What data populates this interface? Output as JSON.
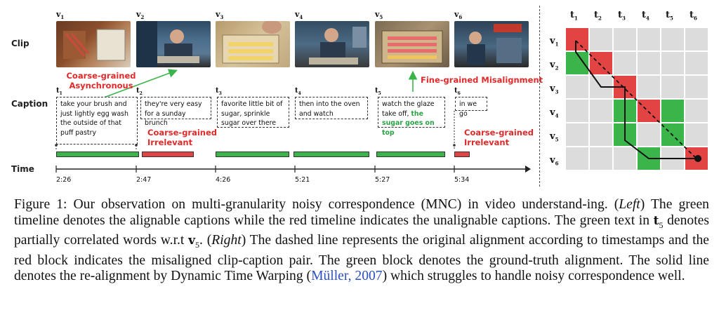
{
  "labels": {
    "clip": "Clip",
    "caption": "Caption",
    "time": "Time"
  },
  "clips": [
    {
      "label": "v",
      "sub": "1"
    },
    {
      "label": "v",
      "sub": "2"
    },
    {
      "label": "v",
      "sub": "3"
    },
    {
      "label": "v",
      "sub": "4"
    },
    {
      "label": "v",
      "sub": "5"
    },
    {
      "label": "v",
      "sub": "6"
    }
  ],
  "captions": [
    {
      "label": "t",
      "sub": "1",
      "text": "take your brush and just lightly egg wash the outside of that puff pastry"
    },
    {
      "label": "t",
      "sub": "2",
      "text": "they're very easy for a sunday brunch"
    },
    {
      "label": "t",
      "sub": "3",
      "text": "favorite little bit of sugar, sprinkle sugar over there"
    },
    {
      "label": "t",
      "sub": "4",
      "text": "then into the oven and watch"
    },
    {
      "label": "t",
      "sub": "5",
      "text_plain": "watch the glaze take off, ",
      "text_green": "the sugar goes on top"
    },
    {
      "label": "t",
      "sub": "6",
      "text": "in we go"
    }
  ],
  "annotations": {
    "coarse_async": "Coarse-grained\nAsynchronous",
    "fine_misalign": "Fine-grained Misalignment",
    "coarse_irrelevant_1": "Coarse-grained\nIrrelevant",
    "coarse_irrelevant_2": "Coarse-grained\nIrrelevant"
  },
  "timeline": {
    "segments": [
      {
        "status": "alignable",
        "color": "#3bb54a"
      },
      {
        "status": "unalignable",
        "color": "#e24343"
      },
      {
        "status": "alignable",
        "color": "#3bb54a"
      },
      {
        "status": "alignable",
        "color": "#3bb54a"
      },
      {
        "status": "alignable",
        "color": "#3bb54a"
      },
      {
        "status": "unalignable",
        "color": "#e24343"
      }
    ],
    "ticks": [
      "2:26",
      "2:47",
      "4:26",
      "5:21",
      "5:27",
      "5:34"
    ]
  },
  "grid": {
    "cols": [
      {
        "label": "t",
        "sub": "1"
      },
      {
        "label": "t",
        "sub": "2"
      },
      {
        "label": "t",
        "sub": "3"
      },
      {
        "label": "t",
        "sub": "4"
      },
      {
        "label": "t",
        "sub": "5"
      },
      {
        "label": "t",
        "sub": "6"
      }
    ],
    "rows": [
      {
        "label": "v",
        "sub": "1"
      },
      {
        "label": "v",
        "sub": "2"
      },
      {
        "label": "v",
        "sub": "3"
      },
      {
        "label": "v",
        "sub": "4"
      },
      {
        "label": "v",
        "sub": "5"
      },
      {
        "label": "v",
        "sub": "6"
      }
    ],
    "cells": [
      [
        "red",
        "gray",
        "gray",
        "gray",
        "gray",
        "gray"
      ],
      [
        "green",
        "red",
        "gray",
        "gray",
        "gray",
        "gray"
      ],
      [
        "gray",
        "gray",
        "red",
        "gray",
        "gray",
        "gray"
      ],
      [
        "gray",
        "gray",
        "green",
        "red",
        "green",
        "gray"
      ],
      [
        "gray",
        "gray",
        "green",
        "gray",
        "green",
        "gray"
      ],
      [
        "gray",
        "gray",
        "gray",
        "green",
        "gray",
        "red"
      ]
    ],
    "colors": {
      "red": "#e24343",
      "green": "#3bb54a",
      "gray": "#dcdcdc"
    }
  },
  "figure_caption": {
    "prefix": "Figure 1: Our observation on multi-granularity noisy correspondence (MNC) in video understand-ing. (",
    "left": "Left",
    "mid1": ") The green timeline denotes the alignable captions while the red timeline indicates the unalignable captions. The green text in ",
    "t5": "t",
    "t5sub": "5",
    "mid2": " denotes partially correlated words w.r.t ",
    "v5": "v",
    "v5sub": "5",
    "mid3": ". (",
    "right": "Right",
    "mid4": ") The dashed line represents the original alignment according to timestamps and the red block indicates the misaligned clip-caption pair. The green block denotes the ground-truth alignment. The solid line denotes the re-alignment by Dynamic Time Warping (",
    "cite_author": "Müller",
    "cite_sep": ", ",
    "cite_year": "2007",
    "end": ") which struggles to handle noisy correspondence well."
  }
}
